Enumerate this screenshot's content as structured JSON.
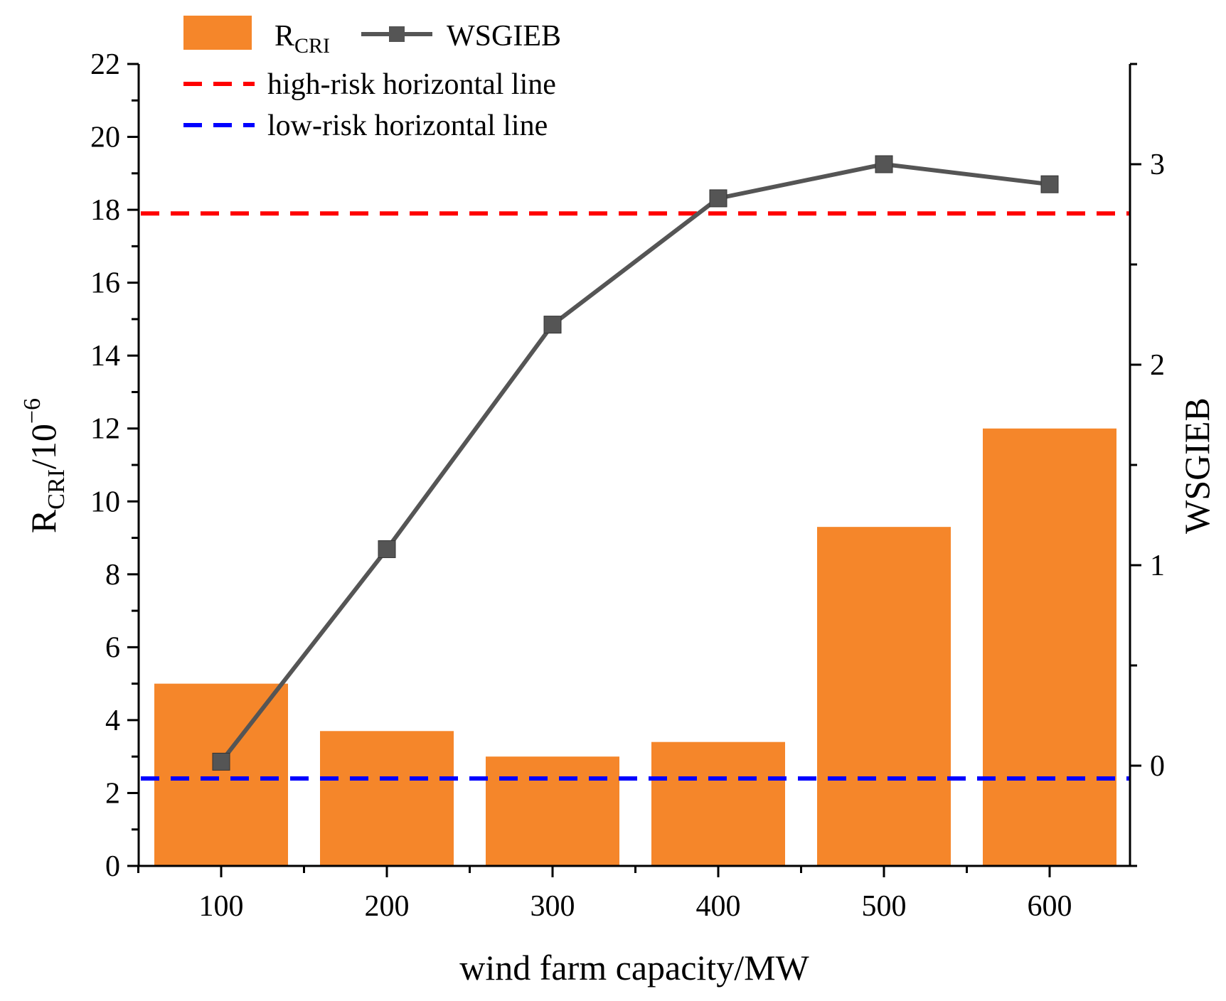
{
  "chart_data": {
    "type": "bar",
    "categories": [
      "100",
      "200",
      "300",
      "400",
      "500",
      "600"
    ],
    "xlabel": "wind farm capacity/MW",
    "y_left": {
      "label_main": "R",
      "label_sub": "CRI",
      "label_rest": "/10",
      "label_sup": "−6",
      "ylim": [
        0,
        22
      ],
      "ticks": [
        "0",
        "2",
        "4",
        "6",
        "8",
        "10",
        "12",
        "14",
        "16",
        "18",
        "20",
        "22"
      ]
    },
    "y_right": {
      "label": "WSGIEB",
      "ylim": [
        -0.5,
        3.5
      ],
      "ticks": [
        "0",
        "1",
        "2",
        "3"
      ]
    },
    "series": [
      {
        "name": "R_CRI",
        "type": "bar",
        "axis": "left",
        "color": "#F5862A",
        "values": [
          5.0,
          3.7,
          3.0,
          3.4,
          9.3,
          12.0
        ]
      },
      {
        "name": "WSGIEB",
        "type": "line",
        "axis": "right",
        "color": "#555555",
        "values": [
          0.02,
          1.08,
          2.2,
          2.83,
          3.0,
          2.9
        ]
      }
    ],
    "reference_lines": [
      {
        "name": "high-risk horizontal line",
        "axis": "left",
        "value": 17.9,
        "color": "#FF0000"
      },
      {
        "name": "low-risk horizontal line",
        "axis": "left",
        "value": 2.4,
        "color": "#0000FF"
      }
    ],
    "legend": {
      "bar_label_main": "R",
      "bar_label_sub": "CRI",
      "line_label": "WSGIEB",
      "high_risk_label": "high-risk horizontal line",
      "low_risk_label": "low-risk horizontal line"
    }
  }
}
